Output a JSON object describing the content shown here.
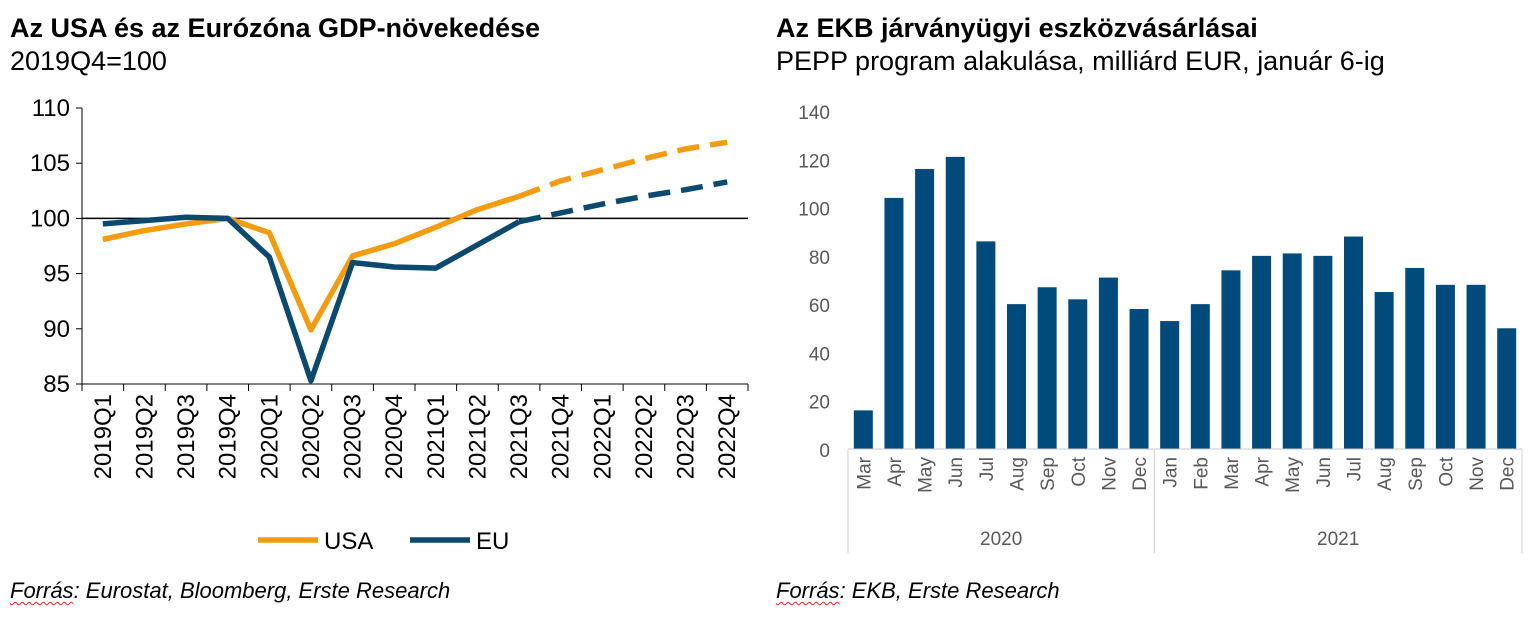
{
  "left": {
    "title": "Az USA és az Eurózóna GDP-növekedése",
    "subtitle": "2019Q4=100",
    "source_prefix": "Forrás",
    "source_rest": ": Eurostat, Bloomberg, Erste Research"
  },
  "right": {
    "title": "Az EKB járványügyi eszközvásárlásai",
    "subtitle": "PEPP program alakulása, milliárd EUR, január 6-ig",
    "source_prefix": "Forrás",
    "source_rest": ": EKB, Erste Research"
  },
  "chart_data": [
    {
      "type": "line",
      "title": "Az USA és az Eurózóna GDP-növekedése",
      "subtitle": "2019Q4=100",
      "categories": [
        "2019Q1",
        "2019Q2",
        "2019Q3",
        "2019Q4",
        "2020Q1",
        "2020Q2",
        "2020Q3",
        "2020Q4",
        "2021Q1",
        "2021Q2",
        "2021Q3",
        "2021Q4",
        "2022Q1",
        "2022Q2",
        "2022Q3",
        "2022Q4"
      ],
      "ylim": [
        85,
        110
      ],
      "yticks": [
        85,
        90,
        95,
        100,
        105,
        110
      ],
      "baseline": 100,
      "forecast_start_index": 10,
      "legend": "bottom",
      "grid": false,
      "series": [
        {
          "name": "USA",
          "color": "#f39c12",
          "values": [
            98.1,
            98.9,
            99.5,
            100.0,
            98.7,
            89.9,
            96.6,
            97.7,
            99.2,
            100.8,
            102.0,
            103.4,
            104.4,
            105.4,
            106.3,
            106.9
          ]
        },
        {
          "name": "EU",
          "color": "#0b4a6e",
          "values": [
            99.5,
            99.8,
            100.1,
            100.0,
            96.5,
            85.3,
            96.0,
            95.6,
            95.5,
            97.6,
            99.7,
            100.5,
            101.3,
            102.0,
            102.6,
            103.3
          ]
        }
      ]
    },
    {
      "type": "bar",
      "title": "Az EKB járványügyi eszközvásárlásai",
      "subtitle": "PEPP program alakulása, milliárd EUR, január 6-ig",
      "categories": [
        "Mar",
        "Apr",
        "May",
        "Jun",
        "Jul",
        "Aug",
        "Sep",
        "Oct",
        "Nov",
        "Dec",
        "Jan",
        "Feb",
        "Mar",
        "Apr",
        "May",
        "Jun",
        "Jul",
        "Aug",
        "Sep",
        "Oct",
        "Nov",
        "Dec"
      ],
      "groups": [
        {
          "label": "2020",
          "count": 10
        },
        {
          "label": "2021",
          "count": 12
        }
      ],
      "values": [
        16,
        104,
        116,
        121,
        86,
        60,
        67,
        62,
        71,
        58,
        53,
        60,
        74,
        80,
        81,
        80,
        88,
        65,
        75,
        68,
        68,
        50
      ],
      "ylim": [
        0,
        140
      ],
      "yticks": [
        0,
        20,
        40,
        60,
        80,
        100,
        120,
        140
      ],
      "color": "#004a7c",
      "grid": false
    }
  ]
}
